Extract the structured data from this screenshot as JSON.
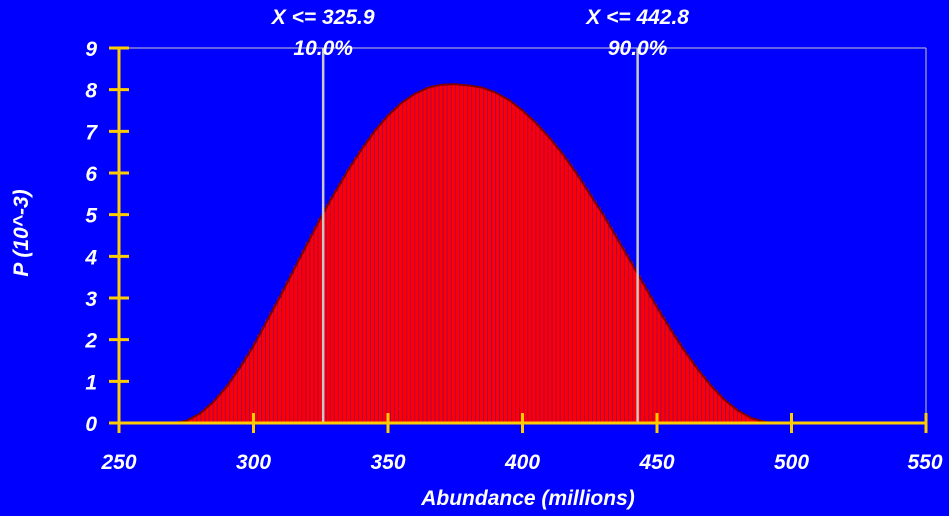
{
  "colors": {
    "background": "#0000FF",
    "axis": "#FFCC00",
    "text": "#FFFFFF",
    "bar_fill": "#FF0000",
    "bar_stroke": "#800080",
    "curve": "#800000",
    "marker_line": "#C8C8C8",
    "plot_border": "#C8C8C8"
  },
  "chart_data": {
    "type": "area",
    "title": "",
    "xlabel": "Abundance (millions)",
    "ylabel": "P (10^-3)",
    "xlim": [
      250,
      550
    ],
    "ylim": [
      0,
      9
    ],
    "x_ticks": [
      250,
      300,
      350,
      400,
      450,
      500,
      550
    ],
    "x_tick_labels": [
      "250",
      "300",
      "350",
      "400",
      "450",
      "500",
      "550"
    ],
    "y_ticks": [
      0,
      1,
      2,
      3,
      4,
      5,
      6,
      7,
      8,
      9
    ],
    "y_tick_labels": [
      "0",
      "1",
      "2",
      "3",
      "4",
      "5",
      "6",
      "7",
      "8",
      "9"
    ],
    "grid": false,
    "series": [
      {
        "x": [
          270,
          275,
          280,
          285,
          290,
          295,
          300,
          305,
          310,
          315,
          320,
          325,
          330,
          335,
          340,
          345,
          350,
          355,
          360,
          365,
          370,
          375,
          380,
          385,
          390,
          395,
          400,
          405,
          410,
          415,
          420,
          425,
          430,
          435,
          440,
          445,
          450,
          455,
          460,
          465,
          470,
          475,
          480,
          485,
          490,
          495,
          500
        ],
        "values": [
          0.0,
          0.05,
          0.22,
          0.5,
          0.87,
          1.33,
          1.85,
          2.45,
          3.05,
          3.68,
          4.3,
          4.93,
          5.5,
          6.05,
          6.55,
          7.0,
          7.38,
          7.68,
          7.9,
          8.05,
          8.12,
          8.13,
          8.1,
          8.05,
          7.93,
          7.75,
          7.5,
          7.2,
          6.85,
          6.45,
          6.0,
          5.5,
          5.0,
          4.45,
          3.9,
          3.33,
          2.78,
          2.25,
          1.75,
          1.3,
          0.9,
          0.56,
          0.3,
          0.12,
          0.03,
          0.0,
          0.0
        ]
      }
    ],
    "annotations": [
      {
        "x": 325.9,
        "label": "X <= 325.9",
        "percent": "10.0%"
      },
      {
        "x": 442.8,
        "label": "X <= 442.8",
        "percent": "90.0%"
      }
    ]
  }
}
